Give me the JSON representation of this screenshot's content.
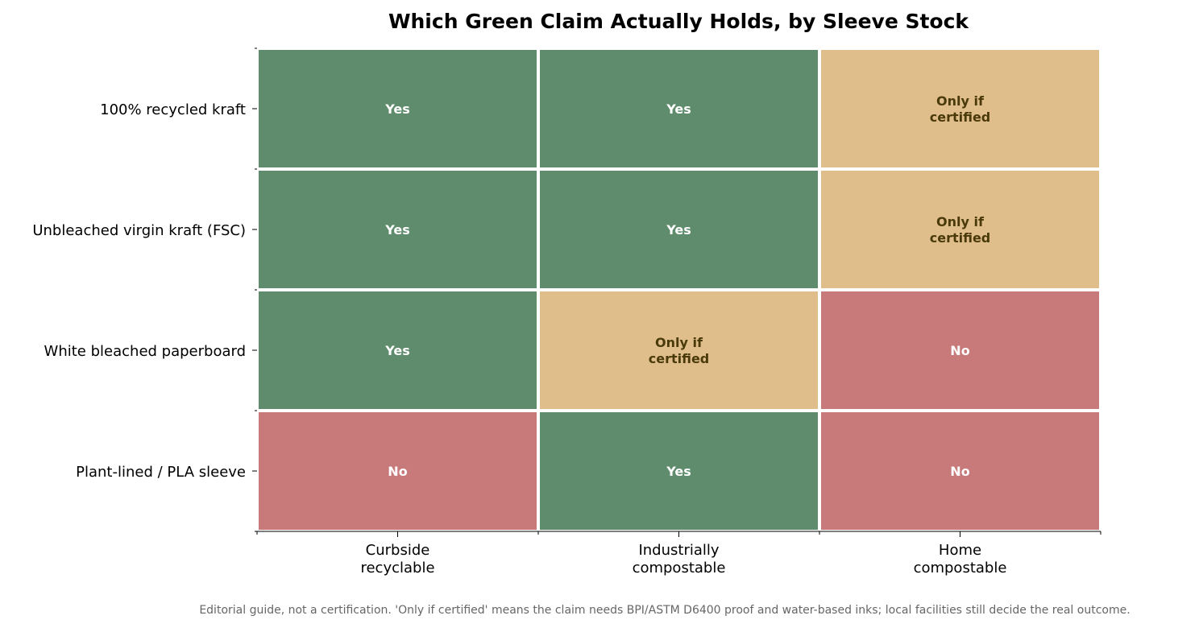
{
  "chart_data": {
    "type": "heatmap",
    "title": "Which Green Claim Actually Holds, by Sleeve Stock",
    "rows": [
      "100% recycled kraft",
      "Unbleached virgin kraft (FSC)",
      "White bleached paperboard",
      "Plant-lined / PLA sleeve"
    ],
    "columns": [
      [
        "Curbside",
        "recyclable"
      ],
      [
        "Industrially",
        "compostable"
      ],
      [
        "Home",
        "compostable"
      ]
    ],
    "values": [
      [
        "Yes",
        "Yes",
        "Only if certified"
      ],
      [
        "Yes",
        "Yes",
        "Only if certified"
      ],
      [
        "Yes",
        "Only if certified",
        "No"
      ],
      [
        "No",
        "Yes",
        "No"
      ]
    ],
    "cell_text": {
      "Yes": [
        "Yes"
      ],
      "No": [
        "No"
      ],
      "Only if certified": [
        "Only if",
        "certified"
      ]
    },
    "colors": {
      "Yes": "#5f8c6c",
      "Only if certified": "#dfbe8b",
      "No": "#c87a7a"
    },
    "text_colors": {
      "Yes": "#ffffff",
      "Only if certified": "#4a3a0a",
      "No": "#ffffff"
    },
    "grid": false,
    "legend": "none"
  },
  "footnote": "Editorial guide, not a certification. 'Only if certified' means the claim needs BPI/ASTM D6400 proof and water-based inks; local facilities still decide the real outcome."
}
